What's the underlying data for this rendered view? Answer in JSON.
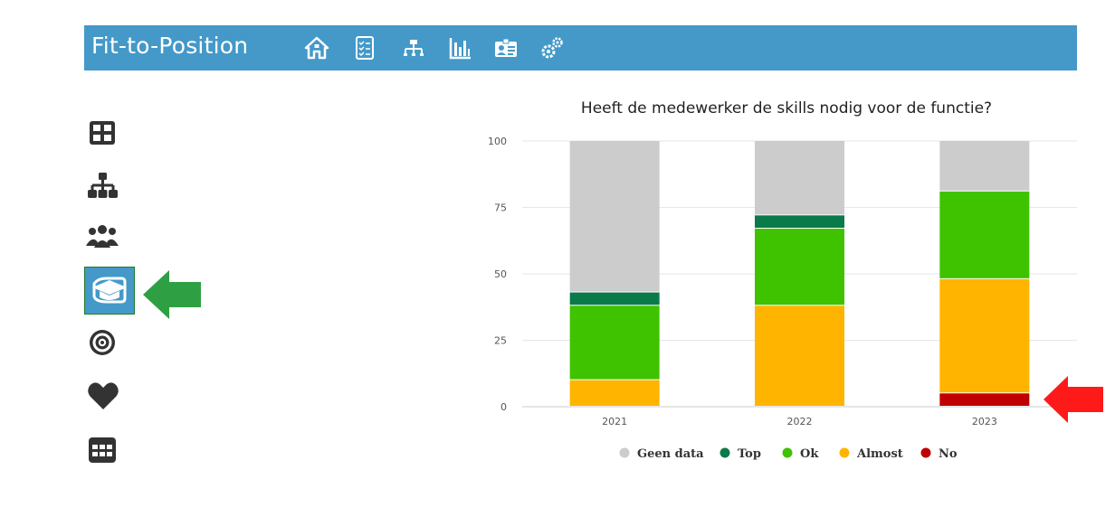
{
  "app": {
    "title": "Fit-to-Position"
  },
  "topbar": {
    "icons": [
      "home-icon",
      "checklist-icon",
      "org-chart-icon",
      "bar-chart-icon",
      "id-card-icon",
      "gears-icon"
    ]
  },
  "sidebar": {
    "icons": [
      "grid-icon",
      "hierarchy-icon",
      "team-icon",
      "graduation-cap-icon",
      "target-icon",
      "heart-icon",
      "table-icon"
    ],
    "active": "graduation-cap-icon"
  },
  "colors": {
    "brand": "#4499c8",
    "geen_data": "#cccccc",
    "top": "#0a7a4a",
    "ok": "#3fc200",
    "almost": "#ffb400",
    "no": "#c00000",
    "arrow_green": "#2ea043",
    "arrow_red": "#ff1a1a"
  },
  "chart_data": {
    "type": "bar",
    "stacked": true,
    "title": "Heeft de medewerker de skills nodig voor de functie?",
    "categories": [
      "2021",
      "2022",
      "2023"
    ],
    "series": [
      {
        "name": "No",
        "color": "#c00000",
        "values": [
          0,
          0,
          5
        ]
      },
      {
        "name": "Almost",
        "color": "#ffb400",
        "values": [
          10,
          38,
          43
        ]
      },
      {
        "name": "Ok",
        "color": "#3fc200",
        "values": [
          28,
          29,
          33
        ]
      },
      {
        "name": "Top",
        "color": "#0a7a4a",
        "values": [
          5,
          5,
          0
        ]
      },
      {
        "name": "Geen data",
        "color": "#cccccc",
        "values": [
          57,
          28,
          19
        ]
      }
    ],
    "legend_order": [
      "Geen data",
      "Top",
      "Ok",
      "Almost",
      "No"
    ],
    "ylim": [
      0,
      100
    ],
    "yticks": [
      "0",
      "25",
      "50",
      "75",
      "100"
    ],
    "grid": true,
    "legend": "bottom"
  }
}
